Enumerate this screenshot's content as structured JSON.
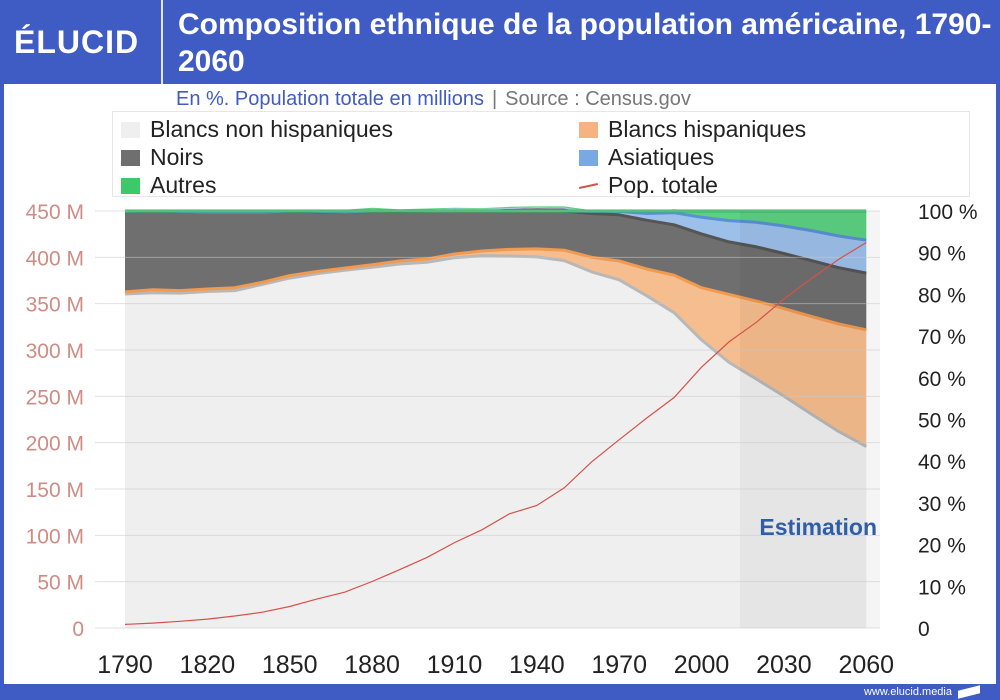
{
  "header": {
    "logo": "ÉLUCID",
    "title": "Composition ethnique de la population américaine, 1790-2060",
    "subtitle": "En %. Population totale en millions",
    "source": "Source : Census.gov"
  },
  "footer": {
    "url": "www.elucid.media"
  },
  "colors": {
    "white_nh": "#efefef",
    "white_nh_line": "#b8b8b8",
    "hispanic": "#f6bd8e",
    "hispanic_line": "#f09a52",
    "black": "#6f6f6f",
    "black_line": "#555555",
    "asian": "#9dc0ea",
    "asian_line": "#5b8fd6",
    "other": "#5bd182",
    "other_line": "#2fb860",
    "total": "#d5524a",
    "left_axis": "#d08c84",
    "estimation": "#2f5ea8"
  },
  "chart_data": {
    "type": "area",
    "title": "Composition ethnique de la population américaine, 1790-2060",
    "x": [
      1790,
      1800,
      1810,
      1820,
      1830,
      1840,
      1850,
      1860,
      1870,
      1880,
      1890,
      1900,
      1910,
      1920,
      1930,
      1940,
      1950,
      1960,
      1970,
      1980,
      1990,
      2000,
      2010,
      2020,
      2030,
      2040,
      2050,
      2060
    ],
    "series": [
      {
        "name": "Blancs non hispaniques",
        "values": [
          80.1,
          80.4,
          80.3,
          80.7,
          80.9,
          82.4,
          83.9,
          85.0,
          85.8,
          86.5,
          87.3,
          87.7,
          88.8,
          89.3,
          89.2,
          89.0,
          88.1,
          85.4,
          83.5,
          79.7,
          75.6,
          69.1,
          63.7,
          59.7,
          55.6,
          51.3,
          47.1,
          43.5
        ]
      },
      {
        "name": "Blancs hispaniques",
        "values": [
          0.5,
          0.7,
          0.6,
          0.6,
          0.7,
          0.5,
          0.6,
          0.5,
          0.5,
          0.6,
          0.7,
          0.8,
          0.9,
          1.1,
          1.6,
          1.9,
          2.5,
          3.5,
          4.5,
          6.4,
          9.0,
          12.5,
          16.3,
          18.7,
          21.0,
          23.4,
          25.8,
          28.0
        ]
      },
      {
        "name": "Noirs",
        "values": [
          19.3,
          18.9,
          19.0,
          18.4,
          18.1,
          16.8,
          15.6,
          14.3,
          13.3,
          13.1,
          11.9,
          11.6,
          10.7,
          9.9,
          9.7,
          9.8,
          10.0,
          10.5,
          11.1,
          11.7,
          12.1,
          12.9,
          12.6,
          13.0,
          13.2,
          13.4,
          13.5,
          13.6
        ]
      },
      {
        "name": "Asiatiques",
        "values": [
          0,
          0,
          0,
          0,
          0,
          0,
          0,
          0.1,
          0.1,
          0.2,
          0.2,
          0.2,
          0.2,
          0.2,
          0.2,
          0.2,
          0.2,
          0.5,
          0.8,
          1.6,
          2.9,
          4.0,
          5.1,
          5.9,
          6.6,
          7.2,
          7.6,
          7.9
        ]
      },
      {
        "name": "Autres",
        "values": [
          0.1,
          0,
          0.1,
          0.3,
          0.3,
          0.3,
          0.1,
          0.4,
          0.6,
          0.4,
          0.3,
          0.3,
          0.2,
          0.2,
          0.3,
          0.2,
          0.3,
          0.3,
          0.4,
          0.6,
          0.8,
          1.5,
          2.3,
          2.7,
          3.6,
          4.7,
          6.0,
          7.0
        ]
      }
    ],
    "total_population": {
      "name": "Pop. totale",
      "values": [
        3.9,
        5.3,
        7.2,
        9.6,
        12.9,
        17.1,
        23.2,
        31.4,
        38.6,
        50.2,
        62.9,
        76.2,
        92.2,
        106.0,
        123.2,
        132.2,
        151.3,
        179.3,
        203.2,
        226.5,
        248.7,
        281.4,
        308.7,
        330,
        355,
        377,
        398,
        416
      ]
    },
    "legend": [
      "Blancs non hispaniques",
      "Blancs hispaniques",
      "Noirs",
      "Asiatiques",
      "Autres",
      "Pop. totale"
    ],
    "xticks": [
      1790,
      1820,
      1850,
      1880,
      1910,
      1940,
      1970,
      2000,
      2030,
      2060
    ],
    "xtick_labels": [
      "1790",
      "1820",
      "1850",
      "1880",
      "1910",
      "1940",
      "1970",
      "2000",
      "2030",
      "2060"
    ],
    "left_axis": {
      "ylim": [
        0,
        450
      ],
      "ticks": [
        0,
        50,
        100,
        150,
        200,
        250,
        300,
        350,
        400,
        450
      ],
      "labels": [
        "0",
        "50 M",
        "100 M",
        "150 M",
        "200 M",
        "250 M",
        "300 M",
        "350 M",
        "400 M",
        "450 M"
      ]
    },
    "right_axis": {
      "ylim": [
        0,
        100
      ],
      "ticks": [
        0,
        10,
        20,
        30,
        40,
        50,
        60,
        70,
        80,
        90,
        100
      ],
      "labels": [
        "0",
        "10 %",
        "20 %",
        "30 %",
        "40 %",
        "50 %",
        "60 %",
        "70 %",
        "80 %",
        "90 %",
        "100 %"
      ]
    },
    "estimation": {
      "label": "Estimation",
      "start_year": 2014,
      "end_year": 2065
    },
    "xlim": [
      1790,
      2065
    ]
  }
}
